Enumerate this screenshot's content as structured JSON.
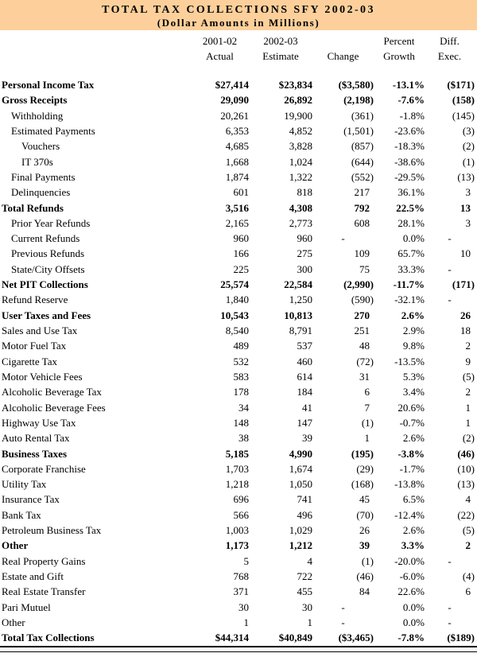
{
  "title": "TOTAL TAX COLLECTIONS SFY 2002-03",
  "subtitle": "(Dollar Amounts in Millions)",
  "colors": {
    "banner_background": "#FDD09B",
    "text": "#000000",
    "rule": "#000000"
  },
  "columns": [
    {
      "id": "actual",
      "line1": "2001-02",
      "line2": "Actual"
    },
    {
      "id": "estimate",
      "line1": "2002-03",
      "line2": "Estimate"
    },
    {
      "id": "change",
      "line1": "",
      "line2": "Change"
    },
    {
      "id": "growth",
      "line1": "Percent",
      "line2": "Growth"
    },
    {
      "id": "diff",
      "line1": "Diff.",
      "line2": "Exec."
    }
  ],
  "rows": [
    {
      "label": "Personal Income Tax",
      "actual": "$27,414",
      "estimate": "$23,834",
      "change": "($3,580)",
      "growth": "-13.1%",
      "diff": "($171)",
      "bold": true,
      "indent": 0
    },
    {
      "label": "Gross Receipts",
      "actual": "29,090",
      "estimate": "26,892",
      "change": "(2,198)",
      "growth": "-7.6%",
      "diff": "(158)",
      "bold": true,
      "indent": 0
    },
    {
      "label": "Withholding",
      "actual": "20,261",
      "estimate": "19,900",
      "change": "(361)",
      "growth": "-1.8%",
      "diff": "(145)",
      "bold": false,
      "indent": 1
    },
    {
      "label": "Estimated Payments",
      "actual": "6,353",
      "estimate": "4,852",
      "change": "(1,501)",
      "growth": "-23.6%",
      "diff": "(3)",
      "bold": false,
      "indent": 1
    },
    {
      "label": "Vouchers",
      "actual": "4,685",
      "estimate": "3,828",
      "change": "(857)",
      "growth": "-18.3%",
      "diff": "(2)",
      "bold": false,
      "indent": 2
    },
    {
      "label": "IT 370s",
      "actual": "1,668",
      "estimate": "1,024",
      "change": "(644)",
      "growth": "-38.6%",
      "diff": "(1)",
      "bold": false,
      "indent": 2
    },
    {
      "label": "Final Payments",
      "actual": "1,874",
      "estimate": "1,322",
      "change": "(552)",
      "growth": "-29.5%",
      "diff": "(13)",
      "bold": false,
      "indent": 1
    },
    {
      "label": "Delinquencies",
      "actual": "601",
      "estimate": "818",
      "change": "217",
      "growth": "36.1%",
      "diff": "3",
      "bold": false,
      "indent": 1
    },
    {
      "label": "Total Refunds",
      "actual": "3,516",
      "estimate": "4,308",
      "change": "792",
      "growth": "22.5%",
      "diff": "13",
      "bold": true,
      "indent": 0
    },
    {
      "label": "Prior Year Refunds",
      "actual": "2,165",
      "estimate": "2,773",
      "change": "608",
      "growth": "28.1%",
      "diff": "3",
      "bold": false,
      "indent": 1
    },
    {
      "label": "Current Refunds",
      "actual": "960",
      "estimate": "960",
      "change": "-",
      "growth": "0.0%",
      "diff": "-",
      "bold": false,
      "indent": 1
    },
    {
      "label": "Previous Refunds",
      "actual": "166",
      "estimate": "275",
      "change": "109",
      "growth": "65.7%",
      "diff": "10",
      "bold": false,
      "indent": 1
    },
    {
      "label": "State/City Offsets",
      "actual": "225",
      "estimate": "300",
      "change": "75",
      "growth": "33.3%",
      "diff": "-",
      "bold": false,
      "indent": 1
    },
    {
      "label": "Net PIT Collections",
      "actual": "25,574",
      "estimate": "22,584",
      "change": "(2,990)",
      "growth": "-11.7%",
      "diff": "(171)",
      "bold": true,
      "indent": 0
    },
    {
      "label": "Refund Reserve",
      "actual": "1,840",
      "estimate": "1,250",
      "change": "(590)",
      "growth": "-32.1%",
      "diff": "-",
      "bold": false,
      "indent": 0
    },
    {
      "label": "User Taxes and Fees",
      "actual": "10,543",
      "estimate": "10,813",
      "change": "270",
      "growth": "2.6%",
      "diff": "26",
      "bold": true,
      "indent": 0
    },
    {
      "label": "Sales and Use Tax",
      "actual": "8,540",
      "estimate": "8,791",
      "change": "251",
      "growth": "2.9%",
      "diff": "18",
      "bold": false,
      "indent": 0
    },
    {
      "label": "Motor Fuel Tax",
      "actual": "489",
      "estimate": "537",
      "change": "48",
      "growth": "9.8%",
      "diff": "2",
      "bold": false,
      "indent": 0
    },
    {
      "label": "Cigarette Tax",
      "actual": "532",
      "estimate": "460",
      "change": "(72)",
      "growth": "-13.5%",
      "diff": "9",
      "bold": false,
      "indent": 0
    },
    {
      "label": "Motor Vehicle Fees",
      "actual": "583",
      "estimate": "614",
      "change": "31",
      "growth": "5.3%",
      "diff": "(5)",
      "bold": false,
      "indent": 0
    },
    {
      "label": "Alcoholic Beverage Tax",
      "actual": "178",
      "estimate": "184",
      "change": "6",
      "growth": "3.4%",
      "diff": "2",
      "bold": false,
      "indent": 0
    },
    {
      "label": "Alcoholic Beverage Fees",
      "actual": "34",
      "estimate": "41",
      "change": "7",
      "growth": "20.6%",
      "diff": "1",
      "bold": false,
      "indent": 0
    },
    {
      "label": "Highway Use Tax",
      "actual": "148",
      "estimate": "147",
      "change": "(1)",
      "growth": "-0.7%",
      "diff": "1",
      "bold": false,
      "indent": 0
    },
    {
      "label": "Auto Rental Tax",
      "actual": "38",
      "estimate": "39",
      "change": "1",
      "growth": "2.6%",
      "diff": "(2)",
      "bold": false,
      "indent": 0
    },
    {
      "label": "Business Taxes",
      "actual": "5,185",
      "estimate": "4,990",
      "change": "(195)",
      "growth": "-3.8%",
      "diff": "(46)",
      "bold": true,
      "indent": 0
    },
    {
      "label": "Corporate Franchise",
      "actual": "1,703",
      "estimate": "1,674",
      "change": "(29)",
      "growth": "-1.7%",
      "diff": "(10)",
      "bold": false,
      "indent": 0
    },
    {
      "label": "Utility Tax",
      "actual": "1,218",
      "estimate": "1,050",
      "change": "(168)",
      "growth": "-13.8%",
      "diff": "(13)",
      "bold": false,
      "indent": 0
    },
    {
      "label": "Insurance Tax",
      "actual": "696",
      "estimate": "741",
      "change": "45",
      "growth": "6.5%",
      "diff": "4",
      "bold": false,
      "indent": 0
    },
    {
      "label": "Bank Tax",
      "actual": "566",
      "estimate": "496",
      "change": "(70)",
      "growth": "-12.4%",
      "diff": "(22)",
      "bold": false,
      "indent": 0
    },
    {
      "label": "Petroleum Business Tax",
      "actual": "1,003",
      "estimate": "1,029",
      "change": "26",
      "growth": "2.6%",
      "diff": "(5)",
      "bold": false,
      "indent": 0
    },
    {
      "label": "Other",
      "actual": "1,173",
      "estimate": "1,212",
      "change": "39",
      "growth": "3.3%",
      "diff": "2",
      "bold": true,
      "indent": 0
    },
    {
      "label": "Real Property Gains",
      "actual": "5",
      "estimate": "4",
      "change": "(1)",
      "growth": "-20.0%",
      "diff": "-",
      "bold": false,
      "indent": 0
    },
    {
      "label": "Estate and Gift",
      "actual": "768",
      "estimate": "722",
      "change": "(46)",
      "growth": "-6.0%",
      "diff": "(4)",
      "bold": false,
      "indent": 0
    },
    {
      "label": "Real Estate Transfer",
      "actual": "371",
      "estimate": "455",
      "change": "84",
      "growth": "22.6%",
      "diff": "6",
      "bold": false,
      "indent": 0
    },
    {
      "label": "Pari Mutuel",
      "actual": "30",
      "estimate": "30",
      "change": "-",
      "growth": "0.0%",
      "diff": "-",
      "bold": false,
      "indent": 0
    },
    {
      "label": "Other",
      "actual": "1",
      "estimate": "1",
      "change": "-",
      "growth": "0.0%",
      "diff": "-",
      "bold": false,
      "indent": 0
    },
    {
      "label": "Total Tax Collections",
      "actual": "$44,314",
      "estimate": "$40,849",
      "change": "($3,465)",
      "growth": "-7.8%",
      "diff": "($189)",
      "bold": true,
      "indent": 0
    }
  ]
}
